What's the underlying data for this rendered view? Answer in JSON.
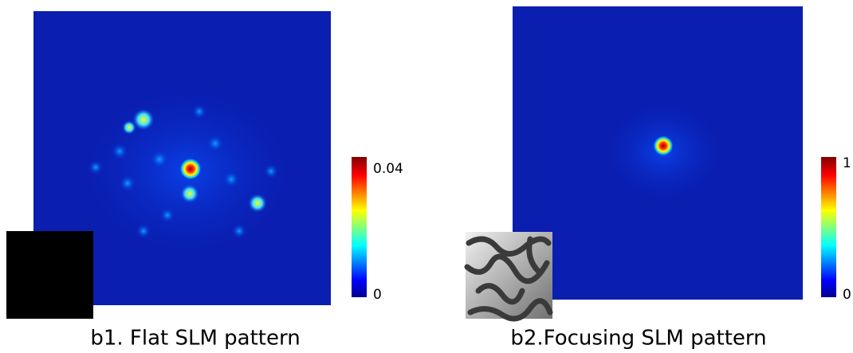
{
  "panels": [
    {
      "colorbar": {
        "max": 0.04,
        "min": 0
      },
      "caption": "b1. Flat SLM pattern"
    },
    {
      "colorbar": {
        "max": 1,
        "min": 0
      },
      "caption": "b2.Focusing SLM pattern"
    }
  ]
}
